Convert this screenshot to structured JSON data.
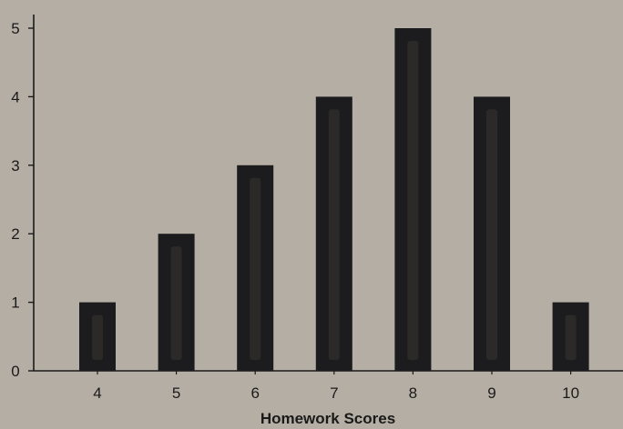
{
  "chart_data": {
    "type": "bar",
    "categories": [
      "4",
      "5",
      "6",
      "7",
      "8",
      "9",
      "10"
    ],
    "values": [
      1,
      2,
      3,
      4,
      5,
      4,
      1
    ],
    "title": "",
    "xlabel": "Homework Scores",
    "ylabel": "",
    "ylim": [
      0,
      5
    ],
    "yticks": [
      "0",
      "1",
      "2",
      "3",
      "4",
      "5"
    ],
    "grid": false,
    "legend": "none",
    "colors": {
      "background": "#b5aea4",
      "bar": "#1c1c1e",
      "bar_highlight": "#2c2a28",
      "axis": "#1a1a1a"
    }
  }
}
